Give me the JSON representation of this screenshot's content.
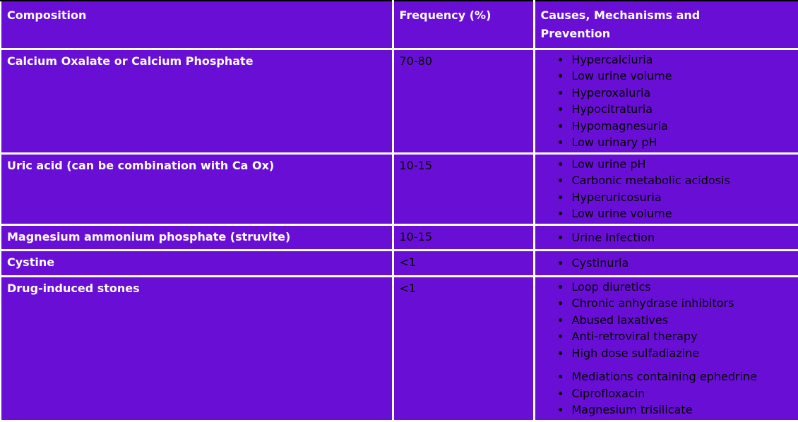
{
  "table": {
    "headers": {
      "composition": "Composition",
      "frequency": "Frequency (%)",
      "causes": "Causes, Mechanisms and Prevention"
    },
    "rows": [
      {
        "composition": "Calcium Oxalate or Calcium Phosphate",
        "frequency": "70-80",
        "causes": [
          "Hypercalciuria",
          "Low urine volume",
          "Hyperoxaluria",
          "Hypocitraturia",
          "Hypomagnesuria",
          "Low urinary pH"
        ]
      },
      {
        "composition": "Uric acid (can be combination with Ca Ox)",
        "frequency": "10-15",
        "causes": [
          "Low urine pH",
          "Carbonic metabolic acidosis",
          "Hyperuricosuria",
          "Low urine volume"
        ]
      },
      {
        "composition": "Magnesium ammonium phosphate (struvite)",
        "frequency": "10-15",
        "causes": [
          "Urine Infection"
        ]
      },
      {
        "composition": "Cystine",
        "frequency": "<1",
        "causes": [
          "Cystinuria"
        ]
      },
      {
        "composition": "Drug-induced stones",
        "frequency": "<1",
        "causes": [
          "Loop diuretics",
          "Chronic anhydrase inhibitors",
          "Abused laxatives",
          "Anti-retroviral therapy",
          "High dose sulfadiazine"
        ],
        "causes_secondary": [
          "Mediations containing ephedrine",
          "Ciprofloxacin",
          "Magnesium trisilicate"
        ]
      }
    ],
    "colors": {
      "cell_background": "#690FD5",
      "grid_lines": "#FFFFFF",
      "header_text": "#FFFFFF",
      "body_text": "#000000",
      "top_hairline": "#000000",
      "page_background": "#FFFFFF"
    }
  }
}
